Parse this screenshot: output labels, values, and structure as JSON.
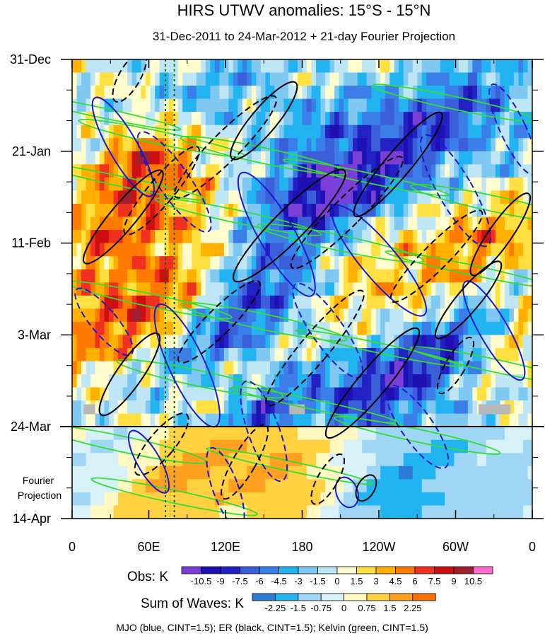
{
  "chart_data": {
    "type": "heatmap",
    "title": "HIRS UTWV anomalies: 15°S - 15°N",
    "subtitle": "31-Dec-2011 to 24-Mar-2012 + 21-day Fourier Projection",
    "x_ticks": [
      "0",
      "60E",
      "120E",
      "180",
      "120W",
      "60W",
      "0"
    ],
    "x_tick_longitudes": [
      0,
      60,
      120,
      180,
      240,
      300,
      360
    ],
    "y_ticks": [
      "31-Dec",
      "21-Jan",
      "11-Feb",
      "3-Mar",
      "24-Mar",
      "14-Apr"
    ],
    "y_tick_days": [
      0,
      21,
      42,
      63,
      84,
      105
    ],
    "forecast_label": "Fourier Projection",
    "forecast_start_day": 84,
    "obs_colorbar": {
      "label": "Obs: K",
      "levels": [
        "-10.5",
        "-9",
        "-7.5",
        "-6",
        "-4.5",
        "-3",
        "-1.5",
        "0",
        "1.5",
        "3",
        "4.5",
        "6",
        "7.5",
        "9",
        "10.5"
      ],
      "colors": [
        "#7a3fd6",
        "#1f10b4",
        "#2222c4",
        "#3a5fd8",
        "#3c7ee8",
        "#22b4f0",
        "#7fc8f2",
        "#bfe6f5",
        "#fffccd",
        "#ffe040",
        "#ffb000",
        "#ff7a00",
        "#f03020",
        "#cc0f0f",
        "#a02030",
        "#ff6ad0"
      ]
    },
    "waves_colorbar": {
      "label": "Sum of Waves: K",
      "levels": [
        "-2.25",
        "-1.5",
        "-0.75",
        "0",
        "0.75",
        "1.5",
        "2.25"
      ],
      "colors": [
        "#2a7ad8",
        "#22b4f0",
        "#9fd6f5",
        "#d8f0f8",
        "#fff8c0",
        "#ffd040",
        "#ffa020",
        "#ff7000"
      ]
    },
    "contour_note": "MJO (blue, CINT=1.5); ER (black, CINT=1.5); Kelvin (green, CINT=1.5)",
    "contour_colors": {
      "mjo": "#1a1ad0",
      "er": "#000000",
      "kelvin": "#33dd33"
    },
    "marked_longitudes": [
      73,
      80
    ]
  }
}
